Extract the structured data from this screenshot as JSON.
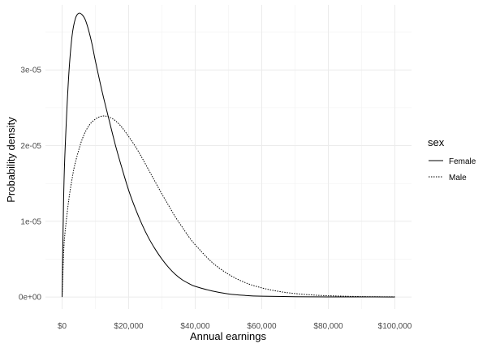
{
  "chart_data": {
    "type": "line",
    "xlabel": "Annual earnings",
    "ylabel": "Probability density",
    "xlim": [
      0,
      100000
    ],
    "ylim": [
      0,
      3.8e-05
    ],
    "x_ticks": [
      {
        "value": 0,
        "label": "$0"
      },
      {
        "value": 20000,
        "label": "$20,000"
      },
      {
        "value": 40000,
        "label": "$40,000"
      },
      {
        "value": 60000,
        "label": "$60,000"
      },
      {
        "value": 80000,
        "label": "$80,000"
      },
      {
        "value": 100000,
        "label": "$100,000"
      }
    ],
    "y_ticks": [
      {
        "value": 0,
        "label": "0e+00"
      },
      {
        "value": 1e-05,
        "label": "1e-05"
      },
      {
        "value": 2e-05,
        "label": "2e-05"
      },
      {
        "value": 3e-05,
        "label": "3e-05"
      }
    ],
    "grid": true,
    "legend": {
      "title": "sex",
      "position": "right"
    },
    "series": [
      {
        "name": "Female",
        "line_style": "solid",
        "color": "#000000",
        "points": [
          [
            0,
            0
          ],
          [
            500,
            1.38e-05
          ],
          [
            1000,
            2.05e-05
          ],
          [
            2000,
            2.93e-05
          ],
          [
            3000,
            3.45e-05
          ],
          [
            4000,
            3.68e-05
          ],
          [
            5000,
            3.75e-05
          ],
          [
            6000,
            3.73e-05
          ],
          [
            7000,
            3.66e-05
          ],
          [
            8000,
            3.52e-05
          ],
          [
            9000,
            3.34e-05
          ],
          [
            10000,
            3.12e-05
          ],
          [
            12000,
            2.72e-05
          ],
          [
            14000,
            2.36e-05
          ],
          [
            16000,
            2.01e-05
          ],
          [
            18000,
            1.7e-05
          ],
          [
            20000,
            1.41e-05
          ],
          [
            22000,
            1.17e-05
          ],
          [
            24000,
            9.6e-06
          ],
          [
            26000,
            7.8e-06
          ],
          [
            28000,
            6.3e-06
          ],
          [
            30000,
            5e-06
          ],
          [
            32000,
            3.9e-06
          ],
          [
            34000,
            3e-06
          ],
          [
            36000,
            2.3e-06
          ],
          [
            38000,
            1.8e-06
          ],
          [
            40000,
            1.4e-06
          ],
          [
            45000,
            8e-07
          ],
          [
            50000,
            4e-07
          ],
          [
            55000,
            2e-07
          ],
          [
            60000,
            1e-07
          ],
          [
            70000,
            4e-08
          ],
          [
            80000,
            1e-08
          ],
          [
            90000,
            5e-09
          ],
          [
            100000,
            0
          ]
        ]
      },
      {
        "name": "Male",
        "line_style": "dotted",
        "color": "#000000",
        "points": [
          [
            0,
            0
          ],
          [
            500,
            6.2e-06
          ],
          [
            1000,
            9e-06
          ],
          [
            2000,
            1.28e-05
          ],
          [
            3000,
            1.56e-05
          ],
          [
            4000,
            1.78e-05
          ],
          [
            6000,
            2.08e-05
          ],
          [
            8000,
            2.26e-05
          ],
          [
            10000,
            2.35e-05
          ],
          [
            12000,
            2.39e-05
          ],
          [
            14000,
            2.38e-05
          ],
          [
            16000,
            2.33e-05
          ],
          [
            18000,
            2.24e-05
          ],
          [
            20000,
            2.12e-05
          ],
          [
            22000,
            1.99e-05
          ],
          [
            24000,
            1.84e-05
          ],
          [
            26000,
            1.68e-05
          ],
          [
            28000,
            1.52e-05
          ],
          [
            30000,
            1.36e-05
          ],
          [
            32000,
            1.21e-05
          ],
          [
            34000,
            1.06e-05
          ],
          [
            36000,
            9.3e-06
          ],
          [
            38000,
            8e-06
          ],
          [
            40000,
            6.9e-06
          ],
          [
            45000,
            4.6e-06
          ],
          [
            50000,
            3e-06
          ],
          [
            55000,
            1.9e-06
          ],
          [
            60000,
            1.2e-06
          ],
          [
            65000,
            7.4e-07
          ],
          [
            70000,
            4.5e-07
          ],
          [
            75000,
            2.7e-07
          ],
          [
            80000,
            1.6e-07
          ],
          [
            90000,
            5e-08
          ],
          [
            100000,
            2e-08
          ]
        ]
      }
    ]
  }
}
